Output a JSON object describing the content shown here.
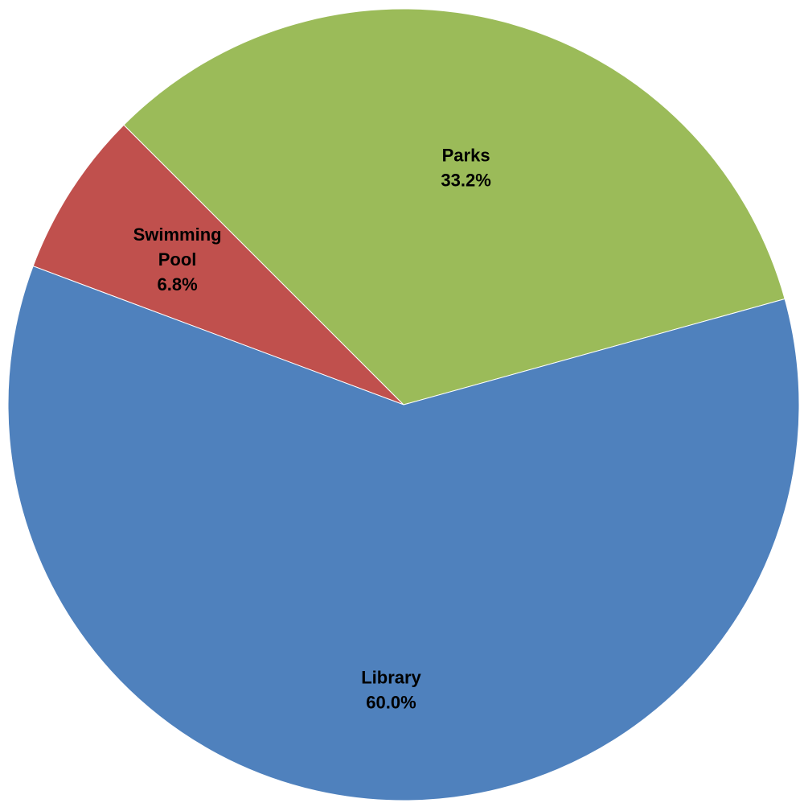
{
  "chart_data": {
    "type": "pie",
    "slices": [
      {
        "label": "Swimming Pool",
        "label_lines": [
          "Swimming",
          "Pool"
        ],
        "value": 6.8,
        "percent_label": "6.8%",
        "color": "#C0504D"
      },
      {
        "label": "Parks",
        "label_lines": [
          "Parks"
        ],
        "value": 33.2,
        "percent_label": "33.2%",
        "color": "#9BBB59"
      },
      {
        "label": "Library",
        "label_lines": [
          "Library"
        ],
        "value": 60.0,
        "percent_label": "60.0%",
        "color": "#4F81BD"
      }
    ],
    "legend": "none",
    "data_labels": "inside"
  }
}
